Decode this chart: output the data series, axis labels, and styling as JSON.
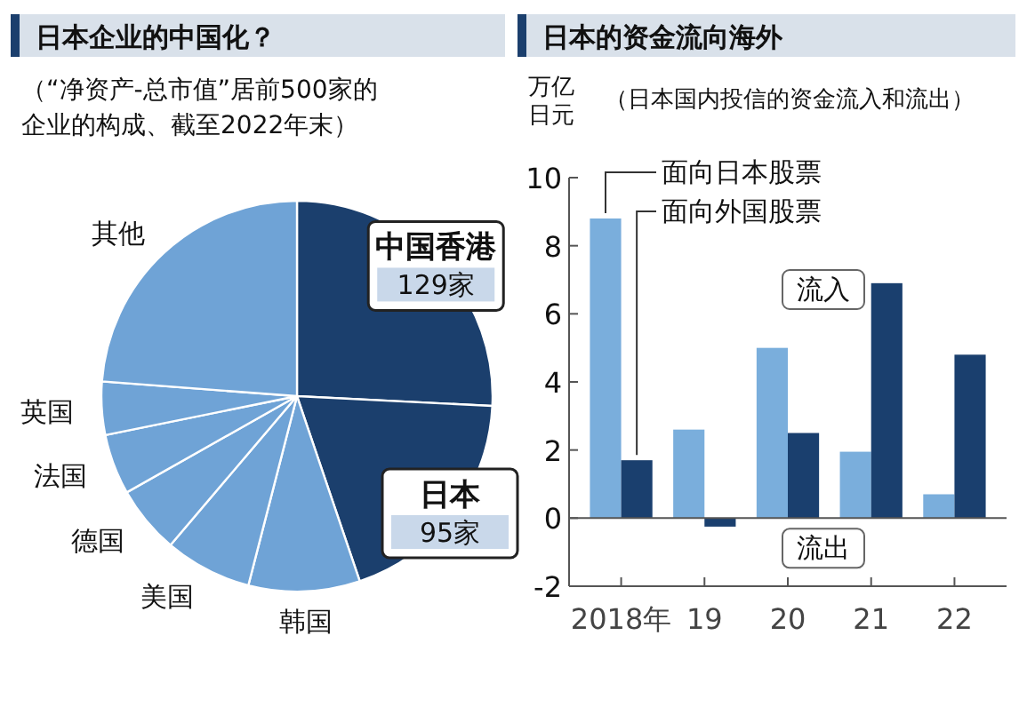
{
  "chart_data": [
    {
      "type": "pie",
      "title": "日本企业的中国化？",
      "subtitle": "（“净资产-总市值”居前500家的企业的构成、截至2022年末）",
      "categories": [
        "中国香港",
        "日本",
        "韩国",
        "美国",
        "德国",
        "法国",
        "英国",
        "其他"
      ],
      "values": [
        129,
        95,
        46,
        36,
        28,
        25,
        22,
        119
      ],
      "value_labels": [
        "129家",
        "95家",
        null,
        null,
        null,
        null,
        null,
        null
      ],
      "colors": [
        "#1b3f6d",
        "#1b3f6d",
        "#6fa3d6",
        "#6fa3d6",
        "#6fa3d6",
        "#6fa3d6",
        "#6fa3d6",
        "#6fa3d6"
      ]
    },
    {
      "type": "bar",
      "title": "日本的资金流向海外",
      "subtitle": "（日本国内投信的资金流入和流出）",
      "ylabel": "万亿日元",
      "categories": [
        "2018年",
        "19",
        "20",
        "21",
        "22"
      ],
      "series": [
        {
          "name": "面向日本股票",
          "color": "#7aaedc",
          "values": [
            8.8,
            2.6,
            5.0,
            1.95,
            0.7
          ]
        },
        {
          "name": "面向外国股票",
          "color": "#1a3f6e",
          "values": [
            1.7,
            -0.25,
            2.5,
            6.9,
            4.8
          ]
        }
      ],
      "ylim": [
        -2,
        10
      ],
      "yticks": [
        -2,
        0,
        2,
        4,
        6,
        8,
        10
      ],
      "grid": false,
      "legend": false,
      "ref_lines": [
        {
          "axis": "y",
          "value": 0
        }
      ],
      "annotations": [
        "流入",
        "流出"
      ]
    }
  ]
}
